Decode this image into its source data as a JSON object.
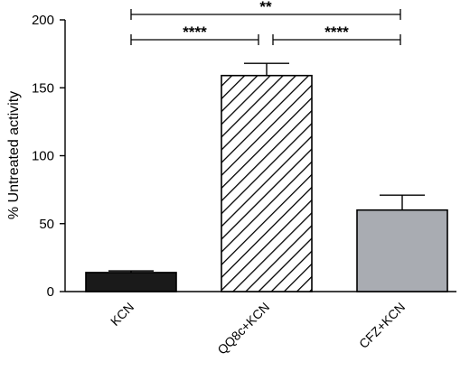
{
  "chart_data": {
    "type": "bar",
    "categories": [
      "KCN",
      "QQ8c+KCN",
      "CFZ+KCN"
    ],
    "values": [
      14,
      159,
      60
    ],
    "errors": [
      1.2,
      9,
      11
    ],
    "ylabel": "% Untreated activity",
    "xlabel": "",
    "ylim": [
      0,
      200
    ],
    "yticks": [
      "0",
      "50",
      "100",
      "150",
      "200"
    ],
    "bar_styles": [
      "solid-black",
      "diagonal-hatch",
      "solid-gray"
    ],
    "colors": {
      "bar_kcn": "#1a1a1a",
      "bar_cfz": "#a9acb2",
      "hatch": "#000000",
      "axis": "#000000"
    },
    "significance": [
      {
        "from": 0,
        "to": 2,
        "label": "**"
      },
      {
        "from": 0,
        "to": 1,
        "label": "****"
      },
      {
        "from": 1,
        "to": 2,
        "label": "****"
      }
    ]
  }
}
